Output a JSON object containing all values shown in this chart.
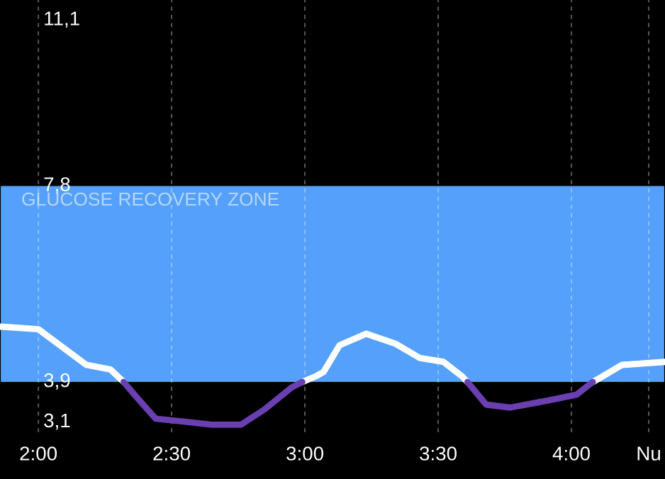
{
  "chart_data": {
    "type": "line",
    "xlim": [
      1.856,
      4.351
    ],
    "ylim": [
      2.9,
      11.5
    ],
    "xticks": [
      {
        "value": 2.0,
        "label": "2:00"
      },
      {
        "value": 2.5,
        "label": "2:30"
      },
      {
        "value": 3.0,
        "label": "3:00"
      },
      {
        "value": 3.5,
        "label": "3:30"
      },
      {
        "value": 4.0,
        "label": "4:00"
      },
      {
        "value": 4.29,
        "label": "Nu"
      }
    ],
    "yticks": [
      {
        "value": 3.1,
        "label": "3,1"
      },
      {
        "value": 3.9,
        "label": "3,9"
      },
      {
        "value": 7.8,
        "label": "7,8"
      },
      {
        "value": 11.1,
        "label": "11,1"
      }
    ],
    "grid": "x",
    "line_style": "solid",
    "marker": "none",
    "bands": [
      {
        "axis": "y",
        "from": 3.9,
        "to": 7.8,
        "label": "GLUCOSE RECOVERY ZONE",
        "color": "#55a0fa"
      }
    ],
    "series": [
      {
        "color": "#ffffff",
        "x": [
          1.86,
          2.0,
          2.18,
          2.27,
          2.32,
          2.6,
          2.99,
          3.04,
          3.07,
          3.13,
          3.23,
          3.34,
          3.43,
          3.52,
          3.59,
          3.61,
          3.8,
          4.08,
          4.1,
          4.19,
          4.35
        ],
        "values": [
          5.0,
          4.95,
          4.24,
          4.15,
          3.9,
          null,
          3.9,
          4.01,
          4.1,
          4.63,
          4.86,
          4.66,
          4.38,
          4.3,
          4.01,
          3.9,
          null,
          3.9,
          3.96,
          4.24,
          4.3
        ]
      },
      {
        "color": "#6a3fb0",
        "x": [
          2.32,
          2.37,
          2.44,
          2.55,
          2.65,
          2.76,
          2.85,
          2.95,
          2.99,
          3.3,
          3.61,
          3.68,
          3.77,
          3.91,
          4.02,
          4.08
        ],
        "values": [
          3.9,
          3.59,
          3.17,
          3.11,
          3.05,
          3.05,
          3.36,
          3.79,
          3.9,
          null,
          3.9,
          3.45,
          3.39,
          3.53,
          3.65,
          3.9
        ]
      }
    ]
  }
}
